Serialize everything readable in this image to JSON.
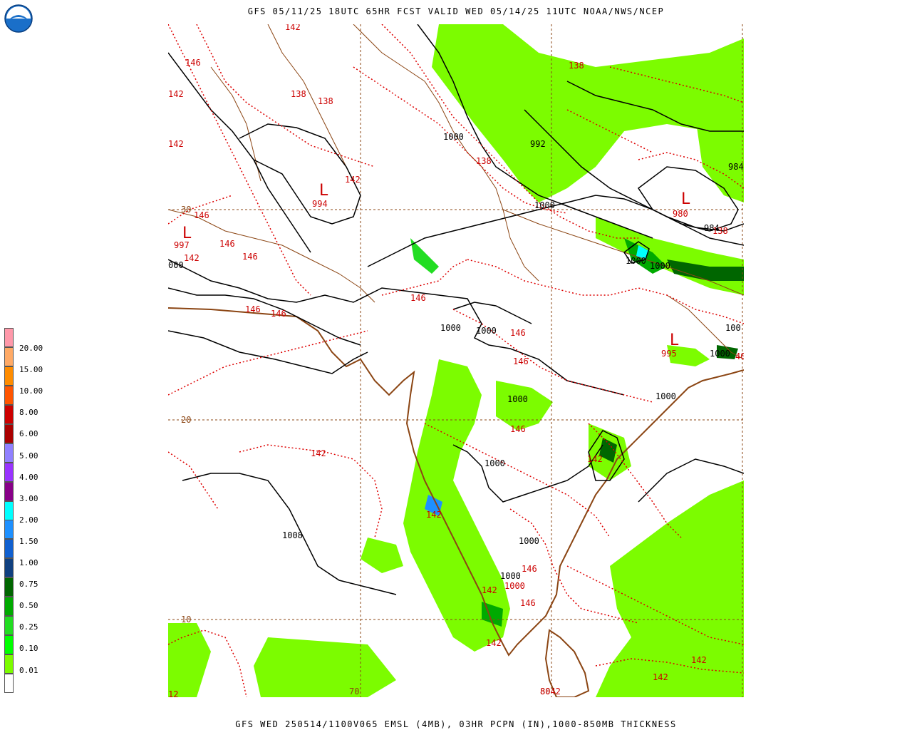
{
  "header": {
    "title": "GFS 05/11/25 18UTC 65HR FCST VALID WED 05/14/25 11UTC NOAA/NWS/NCEP"
  },
  "footer": {
    "title": "GFS WED 250514/1100V065 EMSL (4MB), 03HR PCPN (IN),1000-850MB THICKNESS"
  },
  "logo": {
    "name": "noaa-logo",
    "text": "NOAA"
  },
  "legend": {
    "labels": [
      "20.00",
      "15.00",
      "10.00",
      "8.00",
      "6.00",
      "5.00",
      "4.00",
      "3.00",
      "2.00",
      "1.50",
      "1.00",
      "0.75",
      "0.50",
      "0.25",
      "0.10",
      "0.01"
    ],
    "colors": [
      "#ff99aa",
      "#ffaa66",
      "#ff8c00",
      "#ff5500",
      "#cc0000",
      "#aa0000",
      "#9080ff",
      "#9933ff",
      "#880088",
      "#00ffff",
      "#1e90ff",
      "#1060d0",
      "#104080",
      "#006600",
      "#00aa00",
      "#22dd22",
      "#00ff00",
      "#7cfc00",
      "#ffffff"
    ]
  },
  "grid_labels": {
    "lat30": "30",
    "lat20": "20",
    "lat10": "10",
    "lon70": "70",
    "lon80": "80"
  },
  "pressure_labels": {
    "p1000_nw": "1000",
    "p992_n": "992",
    "p984_ne": "984",
    "p984_e": "984",
    "p1000_c1": "1000",
    "p1000_c2": "1000",
    "p1000_c3": "1000",
    "p1000_nepal": "1000",
    "p1000_bd1": "1000",
    "p1000_bd2": "1000",
    "p1000_e1": "1000",
    "p1000_e2": "1000",
    "p1000_s1": "1000",
    "p1000_s2": "1000",
    "p1000_s3": "1000",
    "p1000_s4": "1000",
    "p1000_w": "1008",
    "p1000_far_w": "000",
    "p1000_e3": "100"
  },
  "low_centers": {
    "L1": {
      "letter": "L",
      "value": "994"
    },
    "L2": {
      "letter": "L",
      "value": "997"
    },
    "L3": {
      "letter": "L",
      "value": "980"
    },
    "L4": {
      "letter": "L",
      "value": "995"
    }
  },
  "thickness_labels": {
    "t142_top": "142",
    "t146_nw": "146",
    "t142_w": "142",
    "t138_a": "138",
    "t138_b": "138",
    "t138_c": "138",
    "t138_ne": "138",
    "t142_b": "142",
    "t138_e": "138",
    "t142_far_w": "142",
    "t146_a": "146",
    "t146_b": "146",
    "t146_c": "146",
    "t142_c": "142",
    "t146_d": "146",
    "t146_e": "146",
    "t146_f": "146",
    "t146_g": "146",
    "t146_h": "146",
    "t146_i": "146",
    "t142_ar": "142",
    "t142_andhra": "142",
    "t142_ker": "142",
    "t142_tn": "142",
    "t146_tn": "146",
    "t146_s": "146",
    "t142_s": "142",
    "t142_sl": "142",
    "t142_sea1": "142",
    "t142_sea2": "142",
    "t8042": "8042",
    "t12": "12",
    "t40": "40",
    "t1000r": "1000"
  }
}
